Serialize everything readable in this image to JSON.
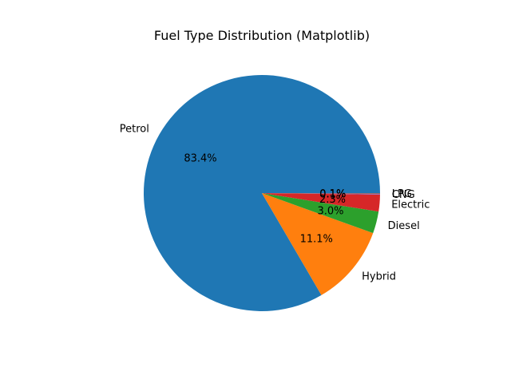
{
  "chart_data": {
    "type": "pie",
    "title": "Fuel Type Distribution (Matplotlib)",
    "slices": [
      {
        "label": "Petrol",
        "value": 83.4,
        "pct_label": "83.4%",
        "color": "#1f77b4"
      },
      {
        "label": "Hybrid",
        "value": 11.1,
        "pct_label": "11.1%",
        "color": "#ff7f0e"
      },
      {
        "label": "Diesel",
        "value": 3.0,
        "pct_label": "3.0%",
        "color": "#2ca02c"
      },
      {
        "label": "Electric",
        "value": 2.3,
        "pct_label": "2.3%",
        "color": "#d62728"
      },
      {
        "label": "CNG",
        "value": 0.1,
        "pct_label": "0.1%",
        "color": "#9467bd"
      },
      {
        "label": "LPG",
        "value": 0.1,
        "pct_label": "0.1%",
        "color": "#8c564b"
      }
    ],
    "start_angle": 0,
    "direction": "counterclockwise"
  }
}
